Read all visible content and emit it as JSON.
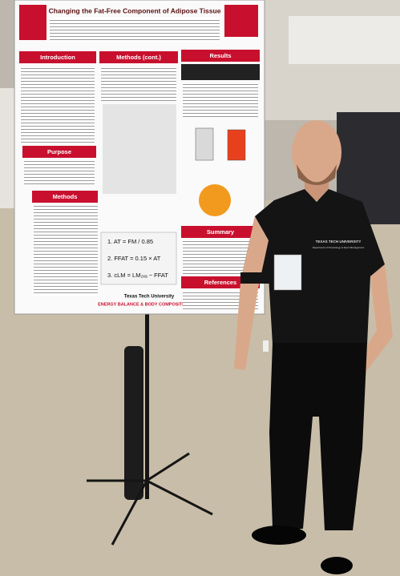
{
  "poster": {
    "title": "Changing the Fat-Free Component of Adipose Tissue",
    "sections": [
      "Introduction",
      "Methods (cont.)",
      "Results",
      "Purpose",
      "Methods",
      "Summary",
      "References"
    ],
    "equations": [
      "1. AT = FM / 0.85",
      "2. FFAT = 0.15 × AT",
      "3. cLM = LM₂ₓₐ − FFAT"
    ],
    "lab": {
      "university": "Texas Tech University",
      "name": "ENERGY BALANCE & BODY COMPOSITION LAB"
    }
  },
  "shirt_logo": {
    "university": "TEXAS TECH UNIVERSITY",
    "department": "Department of Kinesiology & Sport Management"
  }
}
